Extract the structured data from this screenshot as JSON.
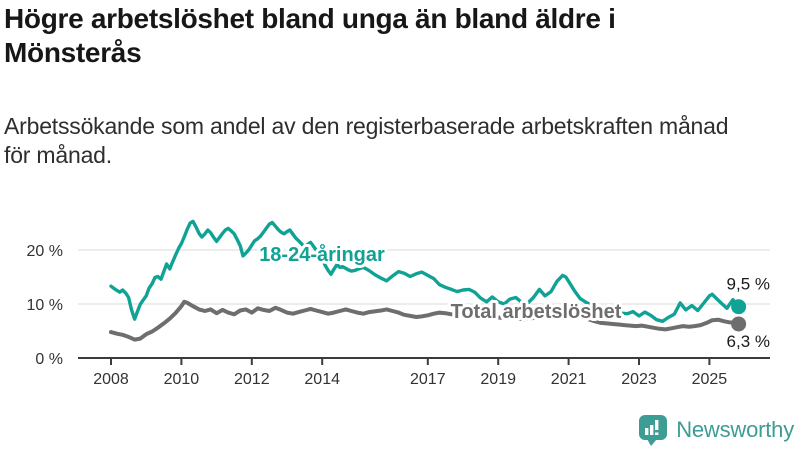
{
  "header": {
    "title": "Högre arbetslöshet bland unga än bland äldre i\nMönsterås",
    "subtitle": "Arbetssökande som andel av den registerbaserade arbetskraften månad\nför månad."
  },
  "footer": {
    "brand": "Newsworthy",
    "brand_color": "#3d9c94",
    "logo_icon": "bar-chart-speech-bubble-icon"
  },
  "colors": {
    "youth_line": "#10a295",
    "total_line": "#6e6e6e",
    "gridline": "#d9d9d9",
    "axis": "#3c3c3c",
    "axis_text": "#333333",
    "value_text": "#1a1a1a",
    "background": "#ffffff"
  },
  "chart_data": {
    "type": "line",
    "title": "Högre arbetslöshet bland unga än bland äldre i Mönsterås",
    "subtitle": "Arbetssökande som andel av den registerbaserade arbetskraften månad för månad.",
    "xlabel": "",
    "ylabel": "",
    "xlim": [
      2007.9,
      2026.0
    ],
    "ylim": [
      0,
      27
    ],
    "grid": "horizontal",
    "legend_position": "inline-labels",
    "y_ticks": [
      {
        "value": 0,
        "label": "0 %"
      },
      {
        "value": 10,
        "label": "10 %"
      },
      {
        "value": 20,
        "label": "20 %"
      }
    ],
    "x_ticks": [
      {
        "year": 2008,
        "label": "2008"
      },
      {
        "year": 2010,
        "label": "2010"
      },
      {
        "year": 2012,
        "label": "2012"
      },
      {
        "year": 2014,
        "label": "2014"
      },
      {
        "year": 2017,
        "label": "2017"
      },
      {
        "year": 2019,
        "label": "2019"
      },
      {
        "year": 2021,
        "label": "2021"
      },
      {
        "year": 2023,
        "label": "2023"
      },
      {
        "year": 2025,
        "label": "2025"
      }
    ],
    "series": [
      {
        "name": "18-24-åringar",
        "color": "#10a295",
        "line_width": 3.4,
        "end_value": 9.5,
        "end_label": "9,5 %",
        "points": [
          [
            2008.0,
            13.3
          ],
          [
            2008.08,
            12.9
          ],
          [
            2008.17,
            12.5
          ],
          [
            2008.25,
            12.2
          ],
          [
            2008.33,
            12.6
          ],
          [
            2008.42,
            12.0
          ],
          [
            2008.5,
            11.2
          ],
          [
            2008.58,
            9.0
          ],
          [
            2008.67,
            7.2
          ],
          [
            2008.75,
            8.6
          ],
          [
            2008.83,
            9.9
          ],
          [
            2008.92,
            10.8
          ],
          [
            2009.0,
            11.5
          ],
          [
            2009.08,
            12.9
          ],
          [
            2009.17,
            13.8
          ],
          [
            2009.25,
            14.9
          ],
          [
            2009.33,
            15.1
          ],
          [
            2009.42,
            14.6
          ],
          [
            2009.5,
            16.0
          ],
          [
            2009.58,
            17.4
          ],
          [
            2009.67,
            16.5
          ],
          [
            2009.75,
            17.8
          ],
          [
            2009.83,
            19.0
          ],
          [
            2009.92,
            20.3
          ],
          [
            2010.0,
            21.2
          ],
          [
            2010.08,
            22.4
          ],
          [
            2010.17,
            23.9
          ],
          [
            2010.25,
            25.0
          ],
          [
            2010.33,
            25.3
          ],
          [
            2010.42,
            24.2
          ],
          [
            2010.5,
            23.1
          ],
          [
            2010.58,
            22.4
          ],
          [
            2010.67,
            23.0
          ],
          [
            2010.75,
            23.7
          ],
          [
            2010.83,
            23.2
          ],
          [
            2010.92,
            22.3
          ],
          [
            2011.0,
            21.6
          ],
          [
            2011.08,
            22.3
          ],
          [
            2011.17,
            23.1
          ],
          [
            2011.25,
            23.7
          ],
          [
            2011.33,
            24.0
          ],
          [
            2011.42,
            23.5
          ],
          [
            2011.5,
            23.0
          ],
          [
            2011.58,
            22.0
          ],
          [
            2011.67,
            20.8
          ],
          [
            2011.75,
            18.9
          ],
          [
            2011.83,
            19.4
          ],
          [
            2011.92,
            20.1
          ],
          [
            2012.0,
            20.9
          ],
          [
            2012.08,
            21.7
          ],
          [
            2012.17,
            22.1
          ],
          [
            2012.25,
            22.6
          ],
          [
            2012.33,
            23.3
          ],
          [
            2012.42,
            24.1
          ],
          [
            2012.5,
            24.8
          ],
          [
            2012.58,
            25.1
          ],
          [
            2012.67,
            24.4
          ],
          [
            2012.75,
            23.8
          ],
          [
            2012.83,
            23.3
          ],
          [
            2012.92,
            23.0
          ],
          [
            2013.0,
            23.4
          ],
          [
            2013.08,
            23.7
          ],
          [
            2013.17,
            22.9
          ],
          [
            2013.25,
            22.2
          ],
          [
            2013.33,
            21.7
          ],
          [
            2013.42,
            21.1
          ],
          [
            2013.5,
            20.6
          ],
          [
            2013.58,
            21.0
          ],
          [
            2013.67,
            21.4
          ],
          [
            2013.75,
            20.7
          ],
          [
            2013.83,
            20.0
          ],
          [
            2013.92,
            19.3
          ],
          [
            2014.0,
            18.4
          ],
          [
            2014.08,
            17.2
          ],
          [
            2014.17,
            16.2
          ],
          [
            2014.25,
            15.5
          ],
          [
            2014.33,
            16.4
          ],
          [
            2014.42,
            17.3
          ],
          [
            2014.5,
            16.8
          ],
          [
            2014.58,
            16.9
          ],
          [
            2014.67,
            16.6
          ],
          [
            2014.75,
            16.3
          ],
          [
            2014.83,
            16.1
          ],
          [
            2014.92,
            16.2
          ],
          [
            2015.0,
            16.4
          ],
          [
            2015.17,
            16.8
          ],
          [
            2015.33,
            16.2
          ],
          [
            2015.5,
            15.4
          ],
          [
            2015.67,
            14.8
          ],
          [
            2015.83,
            14.3
          ],
          [
            2016.0,
            15.2
          ],
          [
            2016.17,
            16.0
          ],
          [
            2016.33,
            15.7
          ],
          [
            2016.5,
            15.1
          ],
          [
            2016.67,
            15.6
          ],
          [
            2016.83,
            15.9
          ],
          [
            2017.0,
            15.3
          ],
          [
            2017.17,
            14.7
          ],
          [
            2017.33,
            13.6
          ],
          [
            2017.5,
            13.1
          ],
          [
            2017.67,
            12.7
          ],
          [
            2017.83,
            12.3
          ],
          [
            2018.0,
            12.6
          ],
          [
            2018.17,
            12.7
          ],
          [
            2018.33,
            12.2
          ],
          [
            2018.5,
            11.1
          ],
          [
            2018.67,
            10.4
          ],
          [
            2018.83,
            11.3
          ],
          [
            2019.0,
            10.4
          ],
          [
            2019.17,
            10.0
          ],
          [
            2019.33,
            10.9
          ],
          [
            2019.5,
            11.2
          ],
          [
            2019.67,
            10.3
          ],
          [
            2019.83,
            10.1
          ],
          [
            2020.0,
            11.2
          ],
          [
            2020.17,
            12.7
          ],
          [
            2020.33,
            11.5
          ],
          [
            2020.5,
            12.3
          ],
          [
            2020.67,
            14.2
          ],
          [
            2020.83,
            15.3
          ],
          [
            2020.92,
            15.0
          ],
          [
            2021.0,
            14.2
          ],
          [
            2021.17,
            12.4
          ],
          [
            2021.33,
            11.0
          ],
          [
            2021.5,
            10.3
          ],
          [
            2021.67,
            9.7
          ],
          [
            2021.83,
            9.3
          ],
          [
            2022.0,
            9.0
          ],
          [
            2022.17,
            8.7
          ],
          [
            2022.33,
            8.5
          ],
          [
            2022.5,
            8.3
          ],
          [
            2022.67,
            8.2
          ],
          [
            2022.83,
            8.6
          ],
          [
            2023.0,
            7.8
          ],
          [
            2023.17,
            8.5
          ],
          [
            2023.33,
            7.9
          ],
          [
            2023.5,
            7.1
          ],
          [
            2023.67,
            6.8
          ],
          [
            2023.83,
            7.5
          ],
          [
            2024.0,
            8.1
          ],
          [
            2024.17,
            10.2
          ],
          [
            2024.33,
            8.9
          ],
          [
            2024.5,
            9.7
          ],
          [
            2024.67,
            8.8
          ],
          [
            2024.83,
            10.1
          ],
          [
            2025.0,
            11.5
          ],
          [
            2025.08,
            11.8
          ],
          [
            2025.17,
            11.2
          ],
          [
            2025.33,
            10.2
          ],
          [
            2025.5,
            9.2
          ],
          [
            2025.58,
            10.0
          ],
          [
            2025.67,
            10.8
          ],
          [
            2025.75,
            10.0
          ],
          [
            2025.83,
            9.5
          ]
        ]
      },
      {
        "name": "Total arbetslöshet",
        "color": "#6e6e6e",
        "line_width": 4,
        "end_value": 6.3,
        "end_label": "6,3 %",
        "points": [
          [
            2008.0,
            4.8
          ],
          [
            2008.17,
            4.5
          ],
          [
            2008.33,
            4.3
          ],
          [
            2008.5,
            3.9
          ],
          [
            2008.67,
            3.4
          ],
          [
            2008.83,
            3.6
          ],
          [
            2009.0,
            4.4
          ],
          [
            2009.17,
            4.9
          ],
          [
            2009.33,
            5.6
          ],
          [
            2009.5,
            6.4
          ],
          [
            2009.67,
            7.3
          ],
          [
            2009.83,
            8.3
          ],
          [
            2010.0,
            9.6
          ],
          [
            2010.08,
            10.4
          ],
          [
            2010.17,
            10.2
          ],
          [
            2010.33,
            9.6
          ],
          [
            2010.5,
            9.0
          ],
          [
            2010.67,
            8.7
          ],
          [
            2010.83,
            9.0
          ],
          [
            2011.0,
            8.3
          ],
          [
            2011.17,
            8.9
          ],
          [
            2011.33,
            8.4
          ],
          [
            2011.5,
            8.1
          ],
          [
            2011.67,
            8.8
          ],
          [
            2011.83,
            9.0
          ],
          [
            2012.0,
            8.4
          ],
          [
            2012.17,
            9.2
          ],
          [
            2012.33,
            8.9
          ],
          [
            2012.5,
            8.7
          ],
          [
            2012.67,
            9.3
          ],
          [
            2012.83,
            8.9
          ],
          [
            2013.0,
            8.4
          ],
          [
            2013.17,
            8.2
          ],
          [
            2013.33,
            8.5
          ],
          [
            2013.5,
            8.8
          ],
          [
            2013.67,
            9.1
          ],
          [
            2013.83,
            8.8
          ],
          [
            2014.0,
            8.5
          ],
          [
            2014.17,
            8.2
          ],
          [
            2014.33,
            8.4
          ],
          [
            2014.5,
            8.7
          ],
          [
            2014.67,
            9.0
          ],
          [
            2014.83,
            8.7
          ],
          [
            2015.0,
            8.4
          ],
          [
            2015.17,
            8.2
          ],
          [
            2015.33,
            8.5
          ],
          [
            2015.67,
            8.8
          ],
          [
            2015.83,
            9.0
          ],
          [
            2016.0,
            8.7
          ],
          [
            2016.17,
            8.4
          ],
          [
            2016.33,
            8.0
          ],
          [
            2016.5,
            7.8
          ],
          [
            2016.67,
            7.6
          ],
          [
            2016.83,
            7.7
          ],
          [
            2017.0,
            7.9
          ],
          [
            2017.17,
            8.2
          ],
          [
            2017.33,
            8.4
          ],
          [
            2017.5,
            8.3
          ],
          [
            2017.67,
            8.1
          ],
          [
            2017.83,
            8.0
          ],
          [
            2018.0,
            8.2
          ],
          [
            2018.25,
            8.1
          ],
          [
            2018.5,
            7.8
          ],
          [
            2018.75,
            7.6
          ],
          [
            2019.0,
            7.5
          ],
          [
            2019.25,
            7.4
          ],
          [
            2019.5,
            7.3
          ],
          [
            2019.75,
            7.2
          ],
          [
            2020.0,
            7.4
          ],
          [
            2020.25,
            7.9
          ],
          [
            2020.5,
            8.3
          ],
          [
            2020.75,
            8.5
          ],
          [
            2021.0,
            8.3
          ],
          [
            2021.25,
            7.9
          ],
          [
            2021.5,
            7.3
          ],
          [
            2021.75,
            6.8
          ],
          [
            2021.92,
            6.5
          ],
          [
            2022.08,
            6.4
          ],
          [
            2022.25,
            6.3
          ],
          [
            2022.42,
            6.2
          ],
          [
            2022.58,
            6.1
          ],
          [
            2022.75,
            6.0
          ],
          [
            2022.92,
            5.9
          ],
          [
            2023.08,
            6.0
          ],
          [
            2023.25,
            5.8
          ],
          [
            2023.42,
            5.6
          ],
          [
            2023.58,
            5.4
          ],
          [
            2023.75,
            5.3
          ],
          [
            2023.92,
            5.5
          ],
          [
            2024.08,
            5.7
          ],
          [
            2024.25,
            5.9
          ],
          [
            2024.42,
            5.8
          ],
          [
            2024.58,
            5.9
          ],
          [
            2024.75,
            6.1
          ],
          [
            2024.92,
            6.5
          ],
          [
            2025.08,
            7.0
          ],
          [
            2025.25,
            7.1
          ],
          [
            2025.42,
            6.8
          ],
          [
            2025.58,
            6.6
          ],
          [
            2025.75,
            6.5
          ],
          [
            2025.83,
            6.3
          ]
        ]
      }
    ]
  }
}
